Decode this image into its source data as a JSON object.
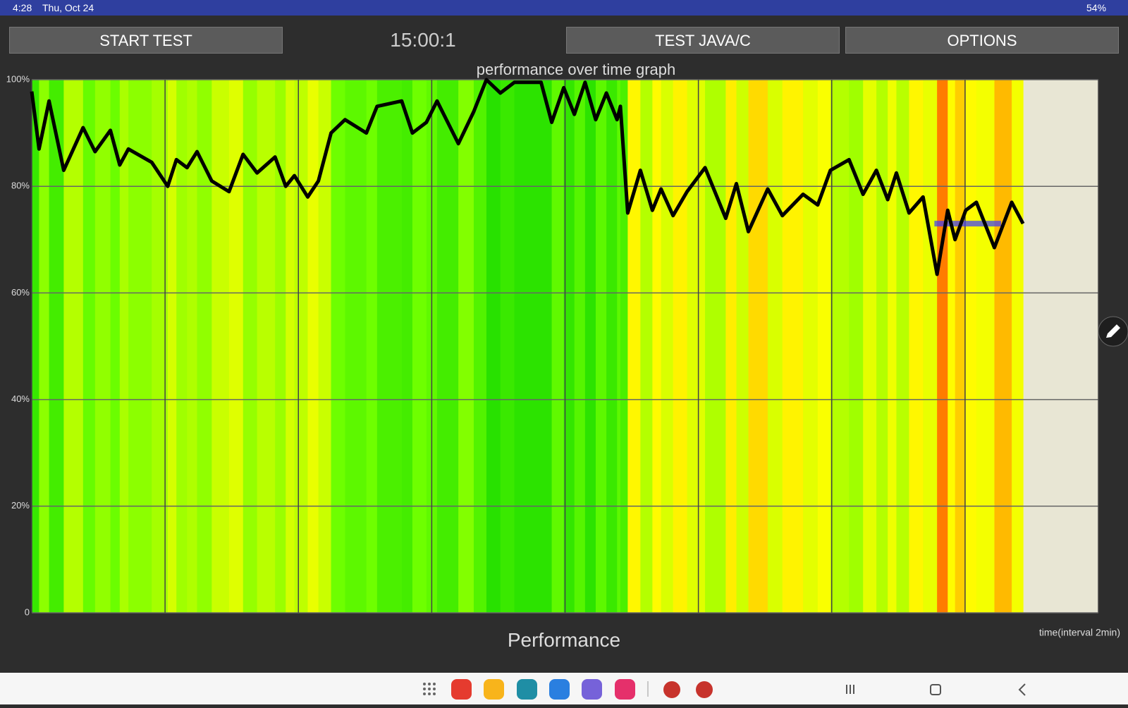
{
  "status_bar": {
    "time": "4:28",
    "date": "Thu, Oct 24",
    "battery": "54%"
  },
  "buttons": [
    "START TEST",
    "TEST JAVA/C",
    "OPTIONS"
  ],
  "timer": "15:00:1",
  "footer_title": "Performance",
  "chart_data": {
    "type": "line",
    "title": "performance over time graph",
    "x_label": "time(interval 2min)",
    "x": [
      0,
      0.11,
      0.26,
      0.48,
      0.77,
      0.95,
      1.18,
      1.32,
      1.45,
      1.8,
      2.04,
      2.17,
      2.33,
      2.48,
      2.7,
      2.96,
      3.17,
      3.38,
      3.65,
      3.81,
      3.94,
      4.14,
      4.3,
      4.49,
      4.7,
      5.02,
      5.18,
      5.55,
      5.71,
      5.92,
      6.08,
      6.4,
      6.63,
      6.82,
      7.03,
      7.24,
      7.64,
      7.8,
      7.98,
      8.14,
      8.3,
      8.46,
      8.62,
      8.78,
      8.83,
      8.94,
      9.13,
      9.31,
      9.44,
      9.62,
      9.83,
      10.1,
      10.41,
      10.57,
      10.75,
      11.04,
      11.26,
      11.57,
      11.79,
      11.98,
      12.26,
      12.47,
      12.67,
      12.84,
      12.97,
      13.16,
      13.37,
      13.58,
      13.74,
      13.85,
      14.01,
      14.17,
      14.44,
      14.7,
      14.87
    ],
    "series": [
      {
        "color": "#000000",
        "values": [
          97.8,
          87,
          96,
          83,
          91,
          86.5,
          90.5,
          84,
          87,
          84.5,
          80,
          85,
          83.5,
          86.5,
          81,
          79,
          86,
          82.5,
          85.5,
          80,
          82,
          78,
          81,
          90,
          92.5,
          90,
          95,
          96,
          90,
          92,
          96,
          88,
          94,
          100,
          97.5,
          99.5,
          99.5,
          92,
          98.5,
          93.5,
          99.5,
          92.5,
          97.5,
          92.5,
          95,
          75,
          83,
          75.5,
          79.5,
          74.5,
          79,
          83.5,
          74,
          80.5,
          71.5,
          79.5,
          74.5,
          78.5,
          76.5,
          83,
          85,
          78.5,
          83,
          77.5,
          82.5,
          75,
          78,
          63.5,
          75.5,
          70,
          75.5,
          77,
          68.5,
          77,
          73
        ]
      }
    ],
    "highlight": {
      "value": 73,
      "x": [
        13.54,
        14.54
      ],
      "color": "#3a3aff"
    },
    "xlim": [
      0,
      16
    ],
    "xticks": [
      0,
      2,
      4,
      6,
      8,
      10,
      12,
      14,
      16
    ],
    "ylim": [
      0,
      100
    ],
    "yticks": [
      0,
      {
        "value": 20,
        "label": "20%"
      },
      {
        "value": 40,
        "label": "40%"
      },
      {
        "value": 60,
        "label": "60%"
      },
      {
        "value": 80,
        "label": "80%"
      },
      {
        "value": 100,
        "label": "100%"
      }
    ],
    "grid": true
  }
}
